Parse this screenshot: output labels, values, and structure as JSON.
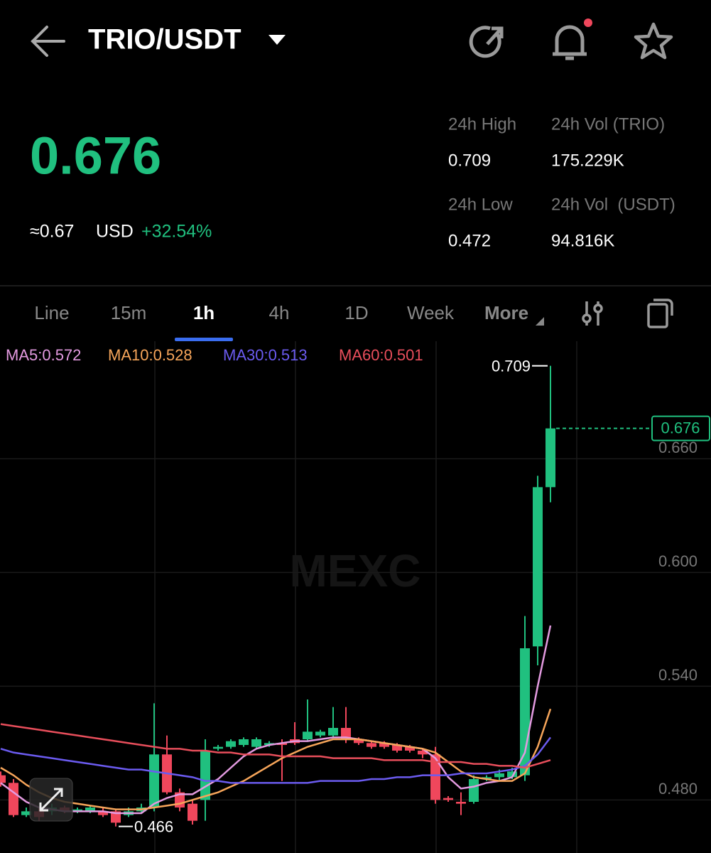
{
  "header": {
    "pair": "TRIO/USDT"
  },
  "price": {
    "last": "0.676",
    "approx": "≈0.67",
    "currency": "USD",
    "change": "+32.54%"
  },
  "stats": [
    {
      "label": "24h High",
      "value": "0.709"
    },
    {
      "label": "24h Vol (TRIO)",
      "value": "175.229K"
    },
    {
      "label": "24h Low",
      "value": "0.472"
    },
    {
      "label": "24h Vol  (USDT)",
      "value": "94.816K"
    }
  ],
  "tabs": [
    "Line",
    "15m",
    "1h",
    "4h",
    "1D",
    "Week",
    "More"
  ],
  "chart_data": {
    "type": "candlestick",
    "watermark": "MEXC",
    "ylim": [
      0.452,
      0.722
    ],
    "yticks": [
      {
        "value": 0.48,
        "label": "0.480"
      },
      {
        "value": 0.54,
        "label": "0.540"
      },
      {
        "value": 0.6,
        "label": "0.600"
      },
      {
        "value": 0.66,
        "label": "0.660"
      }
    ],
    "grid": true,
    "up_color": "#20c07f",
    "down_color": "#f0475c",
    "candles": [
      {
        "open": 0.493,
        "high": 0.495,
        "low": 0.487,
        "close": 0.489
      },
      {
        "open": 0.489,
        "high": 0.491,
        "low": 0.471,
        "close": 0.472
      },
      {
        "open": 0.472,
        "high": 0.476,
        "low": 0.471,
        "close": 0.474
      },
      {
        "open": 0.474,
        "high": 0.476,
        "low": 0.469,
        "close": 0.471
      },
      {
        "open": 0.474,
        "high": 0.478,
        "low": 0.472,
        "close": 0.476
      },
      {
        "open": 0.476,
        "high": 0.477,
        "low": 0.473,
        "close": 0.474
      },
      {
        "open": 0.474,
        "high": 0.476,
        "low": 0.473,
        "close": 0.475
      },
      {
        "open": 0.474,
        "high": 0.477,
        "low": 0.473,
        "close": 0.476
      },
      {
        "open": 0.474,
        "high": 0.476,
        "low": 0.471,
        "close": 0.472
      },
      {
        "open": 0.474,
        "high": 0.475,
        "low": 0.466,
        "close": 0.468
      },
      {
        "open": 0.472,
        "high": 0.476,
        "low": 0.471,
        "close": 0.474
      },
      {
        "open": 0.474,
        "high": 0.478,
        "low": 0.473,
        "close": 0.476
      },
      {
        "open": 0.476,
        "high": 0.531,
        "low": 0.474,
        "close": 0.504
      },
      {
        "open": 0.504,
        "high": 0.514,
        "low": 0.483,
        "close": 0.484
      },
      {
        "open": 0.484,
        "high": 0.486,
        "low": 0.474,
        "close": 0.476
      },
      {
        "open": 0.478,
        "high": 0.48,
        "low": 0.467,
        "close": 0.469
      },
      {
        "open": 0.48,
        "high": 0.512,
        "low": 0.469,
        "close": 0.506
      },
      {
        "open": 0.507,
        "high": 0.509,
        "low": 0.506,
        "close": 0.508
      },
      {
        "open": 0.508,
        "high": 0.512,
        "low": 0.507,
        "close": 0.511
      },
      {
        "open": 0.509,
        "high": 0.513,
        "low": 0.508,
        "close": 0.512
      },
      {
        "open": 0.508,
        "high": 0.513,
        "low": 0.507,
        "close": 0.512
      },
      {
        "open": 0.509,
        "high": 0.511,
        "low": 0.508,
        "close": 0.51
      },
      {
        "open": 0.51,
        "high": 0.512,
        "low": 0.49,
        "close": 0.509
      },
      {
        "open": 0.512,
        "high": 0.521,
        "low": 0.509,
        "close": 0.51
      },
      {
        "open": 0.512,
        "high": 0.533,
        "low": 0.511,
        "close": 0.516
      },
      {
        "open": 0.514,
        "high": 0.517,
        "low": 0.513,
        "close": 0.516
      },
      {
        "open": 0.514,
        "high": 0.529,
        "low": 0.513,
        "close": 0.518
      },
      {
        "open": 0.518,
        "high": 0.529,
        "low": 0.51,
        "close": 0.512
      },
      {
        "open": 0.512,
        "high": 0.513,
        "low": 0.509,
        "close": 0.51
      },
      {
        "open": 0.51,
        "high": 0.511,
        "low": 0.507,
        "close": 0.508
      },
      {
        "open": 0.51,
        "high": 0.511,
        "low": 0.507,
        "close": 0.508
      },
      {
        "open": 0.509,
        "high": 0.51,
        "low": 0.505,
        "close": 0.506
      },
      {
        "open": 0.508,
        "high": 0.509,
        "low": 0.505,
        "close": 0.506
      },
      {
        "open": 0.506,
        "high": 0.507,
        "low": 0.502,
        "close": 0.504
      },
      {
        "open": 0.504,
        "high": 0.508,
        "low": 0.478,
        "close": 0.48
      },
      {
        "open": 0.481,
        "high": 0.482,
        "low": 0.479,
        "close": 0.48
      },
      {
        "open": 0.479,
        "high": 0.484,
        "low": 0.472,
        "close": 0.478
      },
      {
        "open": 0.479,
        "high": 0.493,
        "low": 0.478,
        "close": 0.491
      },
      {
        "open": 0.491,
        "high": 0.493,
        "low": 0.49,
        "close": 0.492
      },
      {
        "open": 0.492,
        "high": 0.496,
        "low": 0.49,
        "close": 0.494
      },
      {
        "open": 0.492,
        "high": 0.497,
        "low": 0.491,
        "close": 0.495
      },
      {
        "open": 0.493,
        "high": 0.577,
        "low": 0.49,
        "close": 0.56
      },
      {
        "open": 0.561,
        "high": 0.651,
        "low": 0.551,
        "close": 0.645
      },
      {
        "open": 0.645,
        "high": 0.709,
        "low": 0.637,
        "close": 0.676
      }
    ],
    "series": [
      {
        "legend": "MA5:0.572",
        "color": "#e39ae0",
        "values": [
          0.489,
          0.484,
          0.479,
          0.476,
          0.475,
          0.474,
          0.474,
          0.474,
          0.474,
          0.473,
          0.473,
          0.473,
          0.478,
          0.481,
          0.483,
          0.483,
          0.487,
          0.491,
          0.497,
          0.503,
          0.507,
          0.509,
          0.51,
          0.511,
          0.511,
          0.512,
          0.513,
          0.513,
          0.512,
          0.511,
          0.51,
          0.509,
          0.508,
          0.507,
          0.502,
          0.492,
          0.486,
          0.487,
          0.489,
          0.49,
          0.492,
          0.505,
          0.54,
          0.572
        ]
      },
      {
        "legend": "MA10:0.528",
        "color": "#f6a55a",
        "values": [
          0.497,
          0.493,
          0.488,
          0.484,
          0.481,
          0.479,
          0.478,
          0.477,
          0.476,
          0.475,
          0.475,
          0.475,
          0.476,
          0.477,
          0.478,
          0.48,
          0.482,
          0.484,
          0.487,
          0.49,
          0.494,
          0.498,
          0.502,
          0.505,
          0.508,
          0.51,
          0.512,
          0.512,
          0.512,
          0.511,
          0.51,
          0.509,
          0.508,
          0.507,
          0.505,
          0.5,
          0.495,
          0.492,
          0.491,
          0.49,
          0.49,
          0.494,
          0.508,
          0.528
        ]
      },
      {
        "legend": "MA30:0.513",
        "color": "#6b5bf0",
        "values": [
          0.507,
          0.505,
          0.504,
          0.503,
          0.502,
          0.501,
          0.5,
          0.499,
          0.498,
          0.497,
          0.496,
          0.496,
          0.495,
          0.494,
          0.493,
          0.492,
          0.49,
          0.49,
          0.489,
          0.489,
          0.489,
          0.489,
          0.489,
          0.489,
          0.489,
          0.49,
          0.49,
          0.49,
          0.49,
          0.491,
          0.491,
          0.492,
          0.492,
          0.493,
          0.493,
          0.493,
          0.494,
          0.494,
          0.494,
          0.495,
          0.496,
          0.498,
          0.504,
          0.513
        ]
      },
      {
        "legend": "MA60:0.501",
        "color": "#e84e5b",
        "values": [
          0.52,
          0.519,
          0.518,
          0.517,
          0.516,
          0.515,
          0.514,
          0.513,
          0.512,
          0.511,
          0.51,
          0.509,
          0.508,
          0.507,
          0.507,
          0.506,
          0.506,
          0.505,
          0.505,
          0.504,
          0.504,
          0.504,
          0.503,
          0.503,
          0.503,
          0.503,
          0.502,
          0.502,
          0.502,
          0.502,
          0.501,
          0.501,
          0.501,
          0.501,
          0.5,
          0.5,
          0.5,
          0.499,
          0.499,
          0.498,
          0.498,
          0.497,
          0.499,
          0.501
        ]
      }
    ]
  }
}
